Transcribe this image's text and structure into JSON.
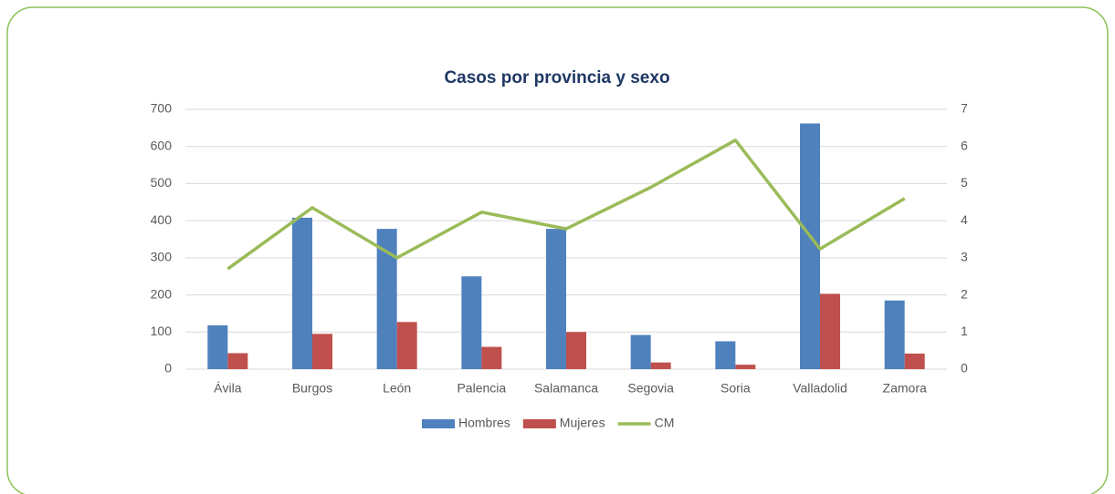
{
  "chart_data": {
    "type": "bar",
    "title": "Casos por provincia y sexo",
    "categories": [
      "Ávila",
      "Burgos",
      "León",
      "Palencia",
      "Salamanca",
      "Segovia",
      "Soria",
      "Valladolid",
      "Zamora"
    ],
    "series": [
      {
        "name": "Hombres",
        "color": "#4f81bd",
        "type": "bar",
        "values": [
          118,
          408,
          378,
          250,
          378,
          92,
          75,
          662,
          185
        ]
      },
      {
        "name": "Mujeres",
        "color": "#c0504d",
        "type": "bar",
        "values": [
          43,
          95,
          127,
          60,
          100,
          18,
          12,
          203,
          42
        ]
      },
      {
        "name": "CM",
        "color": "#9bbb59",
        "type": "line",
        "axis": "y2",
        "values": [
          2.7,
          4.35,
          3.0,
          4.23,
          3.78,
          4.9,
          6.17,
          3.24,
          4.6
        ]
      }
    ],
    "ylim": [
      0,
      700
    ],
    "yticks": [
      0,
      100,
      200,
      300,
      400,
      500,
      600,
      700
    ],
    "y2lim": [
      0,
      7
    ],
    "y2ticks": [
      0,
      1,
      2,
      3,
      4,
      5,
      6,
      7
    ],
    "grid": true,
    "legend": "bottom"
  }
}
